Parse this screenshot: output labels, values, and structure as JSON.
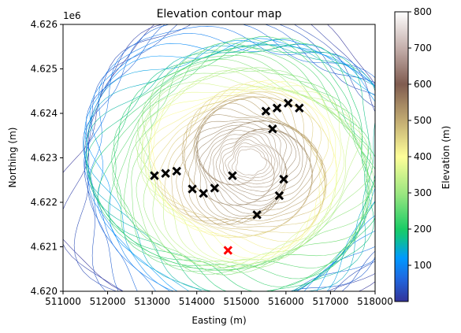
{
  "chart_data": {
    "type": "contour",
    "title": "Elevation contour map",
    "xlabel": "Easting (m)",
    "ylabel": "Northing (m)",
    "y_offset_label": "1e6",
    "xlim": [
      511000,
      518000
    ],
    "ylim": [
      4620000,
      4626000
    ],
    "x_ticks": [
      511000,
      512000,
      513000,
      514000,
      515000,
      516000,
      517000,
      518000
    ],
    "x_tick_labels": [
      "511000",
      "512000",
      "513000",
      "514000",
      "515000",
      "516000",
      "517000",
      "518000"
    ],
    "y_ticks": [
      4620000,
      4621000,
      4622000,
      4623000,
      4624000,
      4625000,
      4626000
    ],
    "y_tick_labels": [
      "4.620",
      "4.621",
      "4.622",
      "4.623",
      "4.624",
      "4.625",
      "4.626"
    ],
    "colorbar": {
      "label": "Elevation (m)",
      "range": [
        0,
        800
      ],
      "ticks": [
        100,
        200,
        300,
        400,
        500,
        600,
        700,
        800
      ],
      "tick_labels": [
        "100",
        "200",
        "300",
        "400",
        "500",
        "600",
        "700",
        "800"
      ],
      "colormap": "terrain"
    },
    "contour_center": [
      515200,
      4622900
    ],
    "markers_black": [
      {
        "x": 513050,
        "y": 4622600
      },
      {
        "x": 513300,
        "y": 4622650
      },
      {
        "x": 513550,
        "y": 4622700
      },
      {
        "x": 513900,
        "y": 4622300
      },
      {
        "x": 514150,
        "y": 4622200
      },
      {
        "x": 514400,
        "y": 4622320
      },
      {
        "x": 514800,
        "y": 4622600
      },
      {
        "x": 515350,
        "y": 4621720
      },
      {
        "x": 515850,
        "y": 4622150
      },
      {
        "x": 515950,
        "y": 4622520
      },
      {
        "x": 515700,
        "y": 4623650
      },
      {
        "x": 515550,
        "y": 4624050
      },
      {
        "x": 515800,
        "y": 4624120
      },
      {
        "x": 516050,
        "y": 4624230
      },
      {
        "x": 516300,
        "y": 4624120
      }
    ],
    "markers_red": [
      {
        "x": 514700,
        "y": 4620920
      }
    ],
    "colors": {
      "black_marker": "#000000",
      "red_marker": "#ff0000"
    }
  }
}
